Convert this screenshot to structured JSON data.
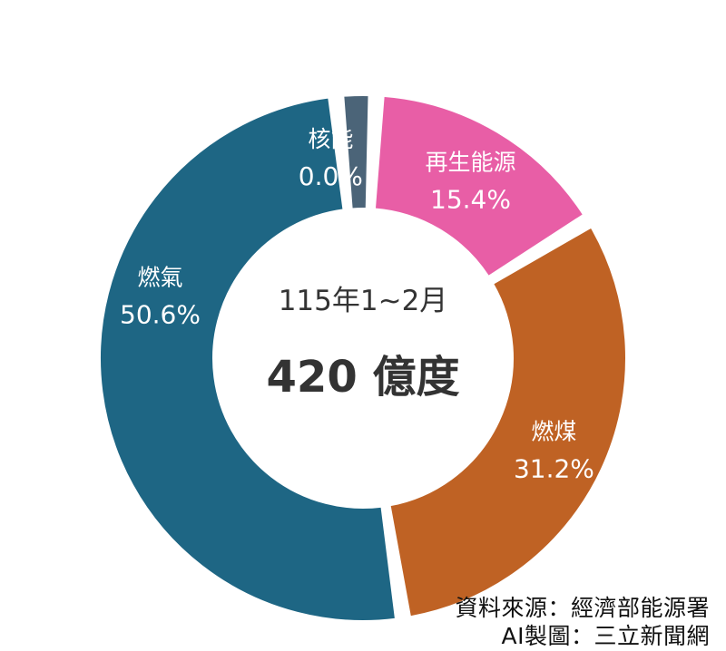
{
  "chart_data": {
    "type": "pie",
    "variant": "donut",
    "center_label": "115年1~2月",
    "center_value": "420 億度",
    "slices": [
      {
        "label": "核能",
        "pct_label": "0.0%",
        "value": 0.0,
        "color": "#4B6478",
        "text_color": "#ffffff"
      },
      {
        "label": "再生能源",
        "pct_label": "15.4%",
        "value": 15.4,
        "color": "#E85EA6",
        "text_color": "#ffffff"
      },
      {
        "label": "燃煤",
        "pct_label": "31.2%",
        "value": 31.2,
        "color": "#BF6224",
        "text_color": "#ffffff"
      },
      {
        "label": "燃氣",
        "pct_label": "50.6%",
        "value": 50.6,
        "color": "#1E6684",
        "text_color": "#ffffff"
      }
    ]
  },
  "footer": {
    "source_line_1": "資料來源：經濟部能源署",
    "source_line_2": "AI製圖：三立新聞網"
  }
}
